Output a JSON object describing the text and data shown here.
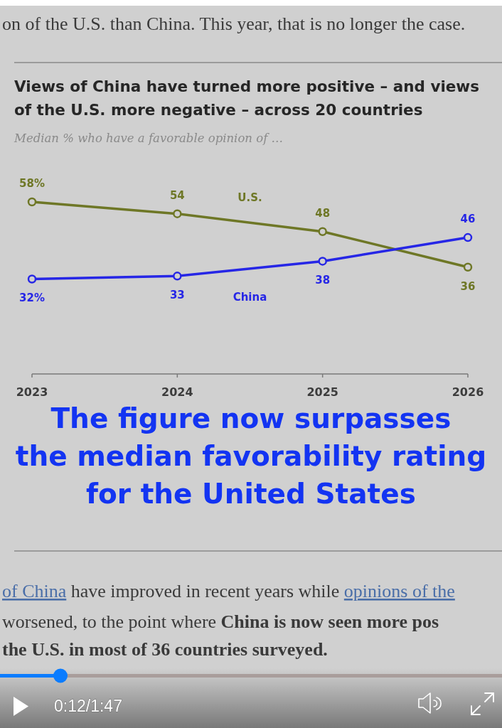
{
  "chart_data": {
    "type": "line",
    "title": "Views of China have turned more positive – and views\nof the U.S. more negative – across 20 countries",
    "subtitle": "Median % who have a favorable opinion of …",
    "x": [
      2023,
      2024,
      2025,
      2026
    ],
    "xlim": [
      2023,
      2026
    ],
    "xticks": [
      2023,
      2024,
      2025,
      2026
    ],
    "tick_labels": "x",
    "marker": "circle",
    "line_style": "solid",
    "series": [
      {
        "name": "U.S.",
        "color": "#6e7726",
        "values": [
          58,
          54,
          48,
          36
        ],
        "value_labels": [
          "58%",
          "54",
          "48",
          "36"
        ]
      },
      {
        "name": "China",
        "color": "#2626e6",
        "values": [
          32,
          33,
          38,
          46
        ],
        "value_labels": [
          "32%",
          "33",
          "38",
          "46"
        ]
      }
    ],
    "annotations": [
      "on of the U.S. than China. This year, that is no longer the case.",
      "The figure now surpasses\nthe median favorability rating\nfor the United States",
      "of China",
      "have improved in recent years while",
      "opinions of the",
      "worsened, to the point where",
      "China is now seen more pos",
      "the U.S. in most of 36 countries surveyed.",
      "0:12/1:47"
    ]
  }
}
